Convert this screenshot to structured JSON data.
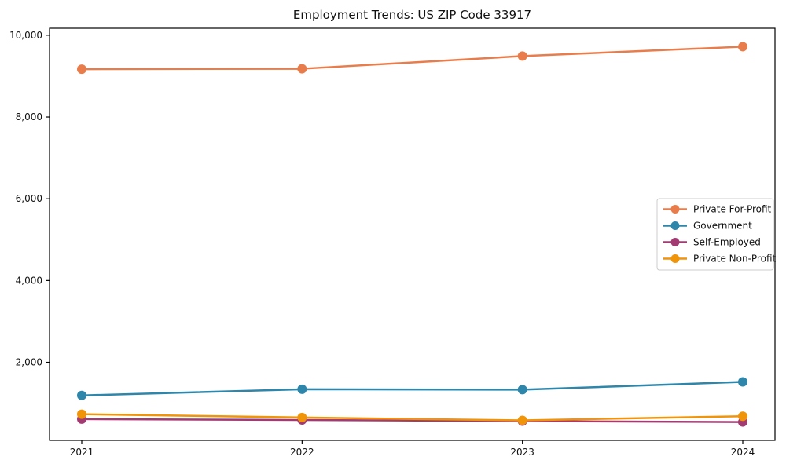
{
  "chart_data": {
    "type": "line",
    "title": "Employment Trends: US ZIP Code 33917",
    "categories": [
      "2021",
      "2022",
      "2023",
      "2024"
    ],
    "series": [
      {
        "name": "Private For-Profit",
        "color": "#E87D4B",
        "values": [
          9170,
          9180,
          9490,
          9720
        ]
      },
      {
        "name": "Government",
        "color": "#2E86AB",
        "values": [
          1190,
          1340,
          1330,
          1520
        ]
      },
      {
        "name": "Self-Employed",
        "color": "#A23B72",
        "values": [
          610,
          590,
          560,
          540
        ]
      },
      {
        "name": "Private Non-Profit",
        "color": "#F0940A",
        "values": [
          730,
          650,
          580,
          680
        ]
      }
    ],
    "xlabel": "",
    "ylabel": "",
    "ylim": [
      90,
      10170
    ],
    "yticks": [
      {
        "value": 2000,
        "label": "2,000"
      },
      {
        "value": 4000,
        "label": "4,000"
      },
      {
        "value": 6000,
        "label": "6,000"
      },
      {
        "value": 8000,
        "label": "8,000"
      },
      {
        "value": 10000,
        "label": "10,000"
      }
    ],
    "grid": false,
    "legend_position": "center-right",
    "axis_color": "#000000",
    "legend_border_color": "#cccccc",
    "background_color": "#ffffff"
  }
}
